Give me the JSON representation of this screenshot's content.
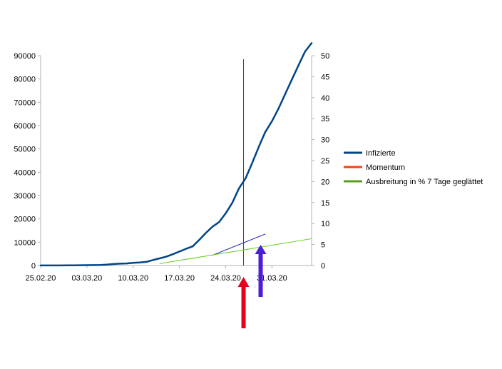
{
  "chart_data": {
    "type": "line",
    "x_dates": [
      "25.02.20",
      "26.02.20",
      "27.02.20",
      "28.02.20",
      "29.02.20",
      "01.03.20",
      "02.03.20",
      "03.03.20",
      "04.03.20",
      "05.03.20",
      "06.03.20",
      "07.03.20",
      "08.03.20",
      "09.03.20",
      "10.03.20",
      "11.03.20",
      "12.03.20",
      "13.03.20",
      "14.03.20",
      "15.03.20",
      "16.03.20",
      "17.03.20",
      "18.03.20",
      "19.03.20",
      "20.03.20",
      "21.03.20",
      "22.03.20",
      "23.03.20",
      "24.03.20",
      "25.03.20",
      "26.03.20",
      "27.03.20",
      "28.03.20",
      "29.03.20",
      "30.03.20",
      "31.03.20",
      "01.04.20",
      "02.04.20",
      "03.04.20",
      "04.04.20",
      "05.04.20",
      "06.04.20"
    ],
    "x_ticks": [
      "25.02.20",
      "03.03.20",
      "10.03.20",
      "17.03.20",
      "24.03.20",
      "31.03.20"
    ],
    "y_left": {
      "min": 0,
      "max": 90000,
      "ticks": [
        "0",
        "10000",
        "20000",
        "30000",
        "40000",
        "50000",
        "60000",
        "70000",
        "80000",
        "90000"
      ]
    },
    "y_right": {
      "min": 0,
      "max": 50,
      "ticks": [
        "0",
        "5",
        "10",
        "15",
        "20",
        "25",
        "30",
        "35",
        "40",
        "45",
        "50"
      ]
    },
    "grid": false,
    "legend_position": "right",
    "series": [
      {
        "name": "Infizierte",
        "color": "#004586",
        "axis": "left",
        "values": [
          16,
          18,
          21,
          26,
          53,
          66,
          117,
          150,
          188,
          240,
          400,
          639,
          795,
          902,
          1139,
          1296,
          1567,
          2369,
          3062,
          3795,
          4838,
          6012,
          7156,
          8198,
          10999,
          13957,
          16662,
          18610,
          22364,
          26900,
          32986,
          37323,
          43938,
          50871,
          57298,
          61913,
          67366,
          73522,
          79696,
          85778,
          91714,
          95391
        ]
      },
      {
        "name": "Momentum",
        "color": "#ff420e",
        "axis": "left",
        "values": [
          null,
          null,
          null,
          null,
          null,
          null,
          null,
          null,
          null,
          null,
          null,
          null,
          null,
          null,
          null,
          null,
          null,
          null,
          null,
          null,
          null,
          null,
          null,
          null,
          null,
          null,
          null,
          null,
          null,
          null,
          null,
          null,
          null,
          null,
          null,
          null,
          null,
          null,
          null,
          null,
          null,
          null
        ]
      },
      {
        "name": "Ausbreitung in % 7 Tage geglättet",
        "color": "#579d1c",
        "axis": "right",
        "values": [
          null,
          null,
          null,
          null,
          null,
          null,
          null,
          null,
          null,
          null,
          null,
          null,
          null,
          null,
          null,
          null,
          null,
          null,
          null,
          null,
          null,
          null,
          null,
          null,
          null,
          null,
          null,
          null,
          null,
          null,
          null,
          null,
          null,
          null,
          null,
          null,
          null,
          null,
          null,
          null,
          null,
          null
        ]
      }
    ]
  },
  "legend": {
    "infizierte": "Infizierte",
    "momentum": "Momentum",
    "ausbreitung": "Ausbreitung in % 7 Tage geglättet"
  },
  "colors": {
    "marker_line": "#c0003c",
    "red_arrow": "#e8001c",
    "blue_arrow": "#4b1fd8",
    "trend_blue": "#2a2ad0",
    "trend_green": "#66cc22"
  }
}
